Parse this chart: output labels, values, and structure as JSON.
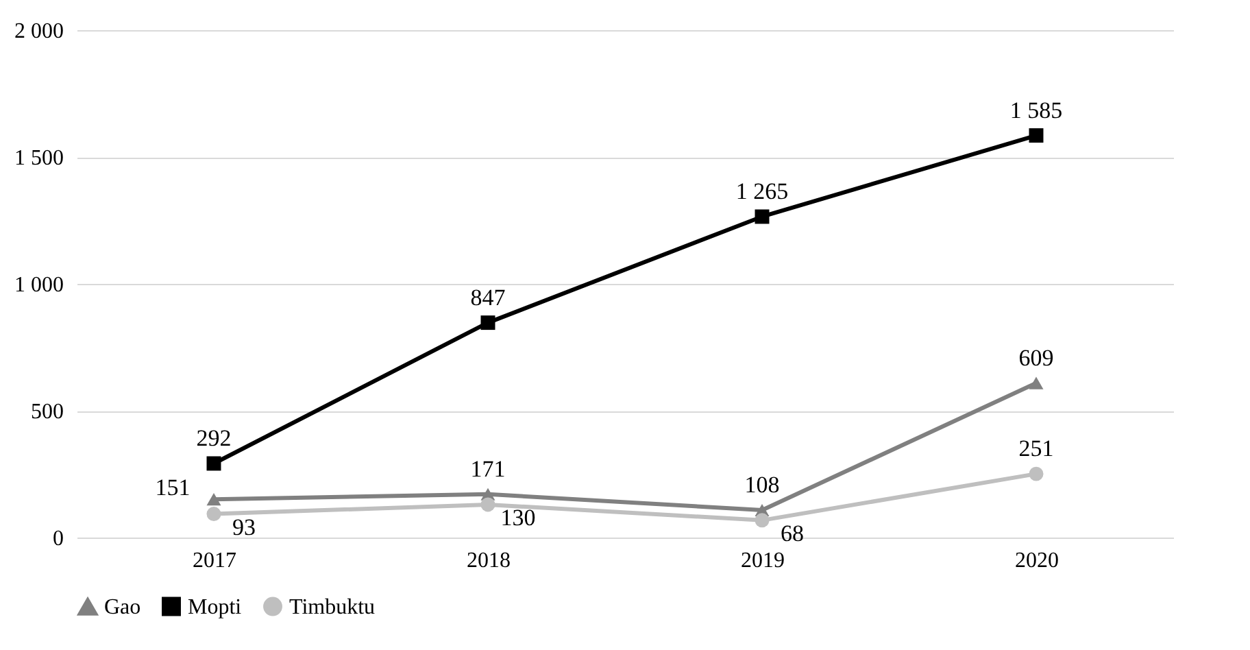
{
  "chart_data": {
    "type": "line",
    "categories": [
      "2017",
      "2018",
      "2019",
      "2020"
    ],
    "series": [
      {
        "name": "Gao",
        "color": "#808080",
        "marker": "triangle",
        "values": [
          151,
          171,
          108,
          609
        ],
        "value_labels": [
          "151",
          "171",
          "108",
          "609"
        ]
      },
      {
        "name": "Mopti",
        "color": "#000000",
        "marker": "square",
        "values": [
          292,
          847,
          1265,
          1585
        ],
        "value_labels": [
          "292",
          "847",
          "1 265",
          "1 585"
        ]
      },
      {
        "name": "Timbuktu",
        "color": "#bfbfbf",
        "marker": "circle",
        "values": [
          93,
          130,
          68,
          251
        ],
        "value_labels": [
          "93",
          "130",
          "68",
          "251"
        ]
      }
    ],
    "ylim": [
      0,
      2000
    ],
    "yticks": [
      {
        "value": 0,
        "label": "0"
      },
      {
        "value": 500,
        "label": "500"
      },
      {
        "value": 1000,
        "label": "1 000"
      },
      {
        "value": 1500,
        "label": "1 500"
      },
      {
        "value": 2000,
        "label": "2 000"
      }
    ],
    "grid": "y",
    "legend": "bottom",
    "line_style": "solid"
  }
}
